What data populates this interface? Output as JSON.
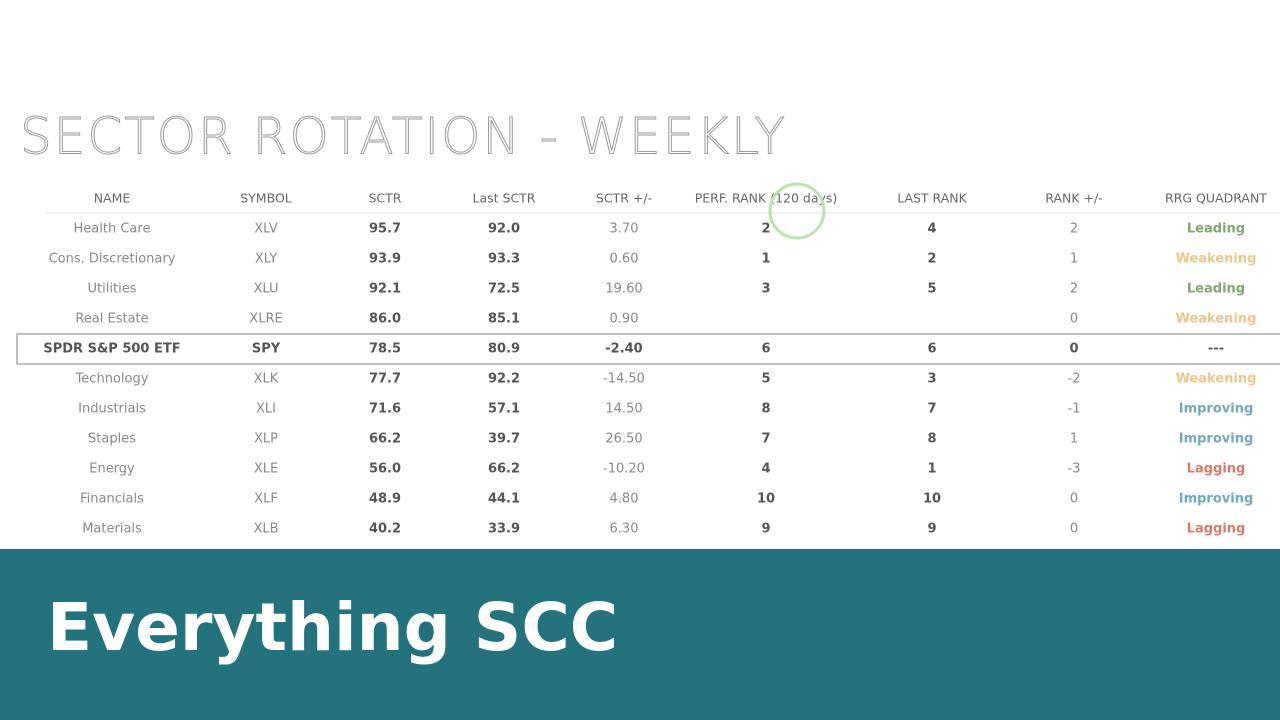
{
  "title": "SECTOR ROTATION - WEEKLY",
  "table": {
    "headers": [
      "NAME",
      "SYMBOL",
      "SCTR",
      "Last SCTR",
      "SCTR +/-",
      "PERF. RANK (120 days)",
      "LAST RANK",
      "RANK +/-",
      "RRG QUADRANT"
    ],
    "rows": [
      [
        "Health Care",
        "XLV",
        "95.7",
        "92.0",
        "3.70",
        "2",
        "4",
        "2",
        "Leading"
      ],
      [
        "Cons. Discretionary",
        "XLY",
        "93.9",
        "93.3",
        "0.60",
        "1",
        "2",
        "1",
        "Weakening"
      ],
      [
        "Utilities",
        "XLU",
        "92.1",
        "72.5",
        "19.60",
        "3",
        "5",
        "2",
        "Leading"
      ],
      [
        "Real Estate",
        "XLRE",
        "86.0",
        "85.1",
        "0.90",
        null,
        null,
        "0",
        "Weakening"
      ],
      [
        "SPDR S&P 500 ETF",
        "SPY",
        "78.5",
        "80.9",
        "-2.40",
        "6",
        "6",
        "0",
        "---"
      ],
      [
        "Technology",
        "XLK",
        "77.7",
        "92.2",
        "-14.50",
        "5",
        "3",
        "-2",
        "Weakening"
      ],
      [
        "Industrials",
        "XLI",
        "71.6",
        "57.1",
        "14.50",
        "8",
        "7",
        "-1",
        "Improving"
      ],
      [
        "Staples",
        "XLP",
        "66.2",
        "39.7",
        "26.50",
        "7",
        "8",
        "1",
        "Improving"
      ],
      [
        "Energy",
        "XLE",
        "56.0",
        "66.2",
        "-10.20",
        "4",
        "1",
        "-3",
        "Lagging"
      ],
      [
        "Financials",
        "XLF",
        "48.9",
        "44.1",
        "4.80",
        "10",
        "10",
        "0",
        "Improving"
      ],
      [
        "Materials",
        "XLB",
        "40.2",
        "33.9",
        "6.30",
        "9",
        "9",
        "0",
        "Lagging"
      ]
    ]
  },
  "banner": {
    "text": "Everything SCC"
  }
}
